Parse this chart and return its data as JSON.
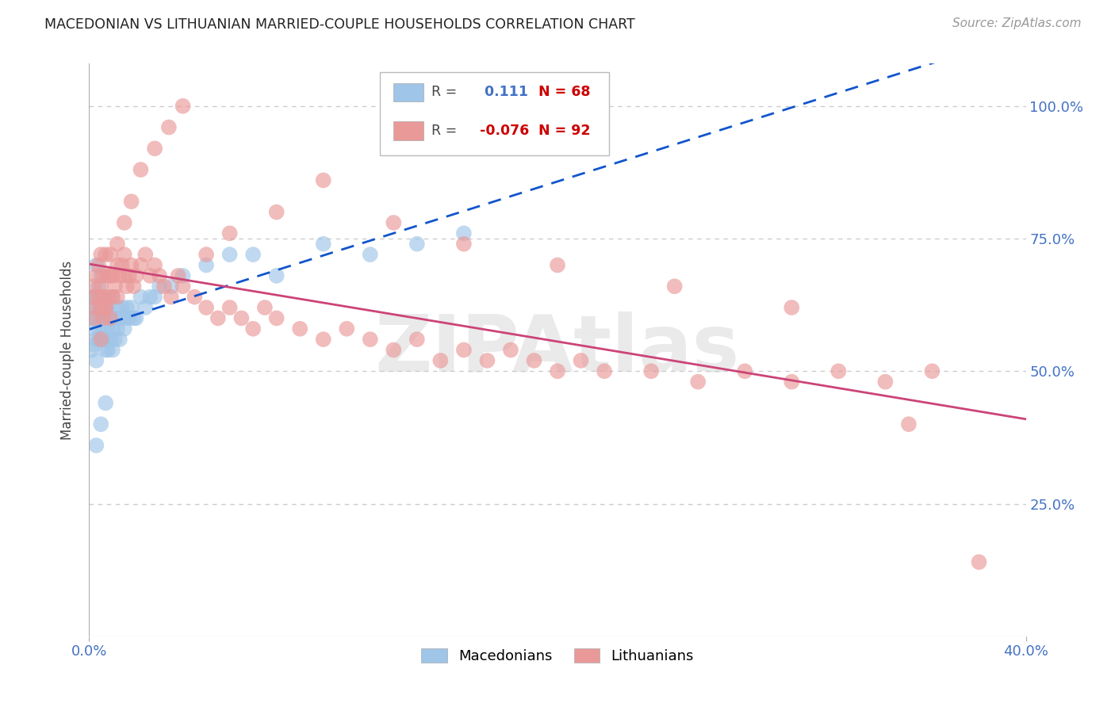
{
  "title": "MACEDONIAN VS LITHUANIAN MARRIED-COUPLE HOUSEHOLDS CORRELATION CHART",
  "source": "Source: ZipAtlas.com",
  "ylabel": "Married-couple Households",
  "legend_macedonians": "Macedonians",
  "legend_lithuanians": "Lithuanians",
  "R_macedonian": 0.111,
  "N_macedonian": 68,
  "R_lithuanian": -0.076,
  "N_lithuanian": 92,
  "xmin": 0.0,
  "xmax": 0.4,
  "ymin": 0.0,
  "ymax": 1.08,
  "yticks": [
    0.25,
    0.5,
    0.75,
    1.0
  ],
  "ytick_labels": [
    "25.0%",
    "50.0%",
    "75.0%",
    "100.0%"
  ],
  "color_macedonian": "#9fc5e8",
  "color_lithuanian": "#ea9999",
  "trendline_macedonian_color": "#1155cc",
  "trendline_lithuanian_color": "#cc4477",
  "background_color": "#ffffff",
  "grid_color": "#cccccc",
  "title_color": "#222222",
  "axis_label_color": "#444444",
  "tick_label_color": "#4472c4",
  "source_color": "#999999",
  "watermark_text": "ZIPAtlas",
  "watermark_color": "#cccccc",
  "mac_x": [
    0.001,
    0.001,
    0.002,
    0.002,
    0.002,
    0.002,
    0.003,
    0.003,
    0.003,
    0.003,
    0.003,
    0.004,
    0.004,
    0.004,
    0.004,
    0.005,
    0.005,
    0.005,
    0.005,
    0.006,
    0.006,
    0.006,
    0.006,
    0.006,
    0.007,
    0.007,
    0.007,
    0.007,
    0.008,
    0.008,
    0.008,
    0.009,
    0.009,
    0.01,
    0.01,
    0.01,
    0.011,
    0.011,
    0.012,
    0.012,
    0.013,
    0.013,
    0.014,
    0.015,
    0.015,
    0.016,
    0.017,
    0.018,
    0.019,
    0.02,
    0.022,
    0.024,
    0.026,
    0.028,
    0.03,
    0.035,
    0.04,
    0.05,
    0.06,
    0.07,
    0.08,
    0.1,
    0.12,
    0.14,
    0.16,
    0.003,
    0.005,
    0.007
  ],
  "mac_y": [
    0.54,
    0.6,
    0.55,
    0.62,
    0.58,
    0.64,
    0.56,
    0.6,
    0.64,
    0.52,
    0.7,
    0.58,
    0.62,
    0.56,
    0.66,
    0.6,
    0.64,
    0.56,
    0.68,
    0.58,
    0.62,
    0.56,
    0.6,
    0.64,
    0.54,
    0.6,
    0.62,
    0.56,
    0.58,
    0.62,
    0.54,
    0.6,
    0.56,
    0.58,
    0.64,
    0.54,
    0.6,
    0.56,
    0.62,
    0.58,
    0.6,
    0.56,
    0.62,
    0.58,
    0.6,
    0.62,
    0.6,
    0.62,
    0.6,
    0.6,
    0.64,
    0.62,
    0.64,
    0.64,
    0.66,
    0.66,
    0.68,
    0.7,
    0.72,
    0.72,
    0.68,
    0.74,
    0.72,
    0.74,
    0.76,
    0.36,
    0.4,
    0.44
  ],
  "lit_x": [
    0.001,
    0.002,
    0.002,
    0.003,
    0.003,
    0.004,
    0.004,
    0.005,
    0.005,
    0.005,
    0.006,
    0.006,
    0.006,
    0.007,
    0.007,
    0.008,
    0.008,
    0.009,
    0.009,
    0.01,
    0.01,
    0.011,
    0.012,
    0.012,
    0.013,
    0.014,
    0.015,
    0.015,
    0.016,
    0.017,
    0.018,
    0.019,
    0.02,
    0.022,
    0.024,
    0.026,
    0.028,
    0.03,
    0.032,
    0.035,
    0.038,
    0.04,
    0.045,
    0.05,
    0.055,
    0.06,
    0.065,
    0.07,
    0.075,
    0.08,
    0.09,
    0.1,
    0.11,
    0.12,
    0.13,
    0.14,
    0.15,
    0.16,
    0.17,
    0.18,
    0.19,
    0.2,
    0.21,
    0.22,
    0.24,
    0.26,
    0.28,
    0.3,
    0.32,
    0.34,
    0.36,
    0.005,
    0.007,
    0.009,
    0.012,
    0.015,
    0.018,
    0.022,
    0.028,
    0.034,
    0.04,
    0.05,
    0.06,
    0.08,
    0.1,
    0.13,
    0.16,
    0.2,
    0.25,
    0.3,
    0.35,
    0.38
  ],
  "lit_y": [
    0.64,
    0.6,
    0.66,
    0.62,
    0.68,
    0.64,
    0.7,
    0.62,
    0.66,
    0.72,
    0.6,
    0.64,
    0.68,
    0.62,
    0.72,
    0.64,
    0.68,
    0.6,
    0.72,
    0.64,
    0.68,
    0.66,
    0.7,
    0.64,
    0.68,
    0.7,
    0.72,
    0.68,
    0.66,
    0.68,
    0.7,
    0.66,
    0.68,
    0.7,
    0.72,
    0.68,
    0.7,
    0.68,
    0.66,
    0.64,
    0.68,
    0.66,
    0.64,
    0.62,
    0.6,
    0.62,
    0.6,
    0.58,
    0.62,
    0.6,
    0.58,
    0.56,
    0.58,
    0.56,
    0.54,
    0.56,
    0.52,
    0.54,
    0.52,
    0.54,
    0.52,
    0.5,
    0.52,
    0.5,
    0.5,
    0.48,
    0.5,
    0.48,
    0.5,
    0.48,
    0.5,
    0.56,
    0.62,
    0.68,
    0.74,
    0.78,
    0.82,
    0.88,
    0.92,
    0.96,
    1.0,
    0.72,
    0.76,
    0.8,
    0.86,
    0.78,
    0.74,
    0.7,
    0.66,
    0.62,
    0.4,
    0.14
  ]
}
